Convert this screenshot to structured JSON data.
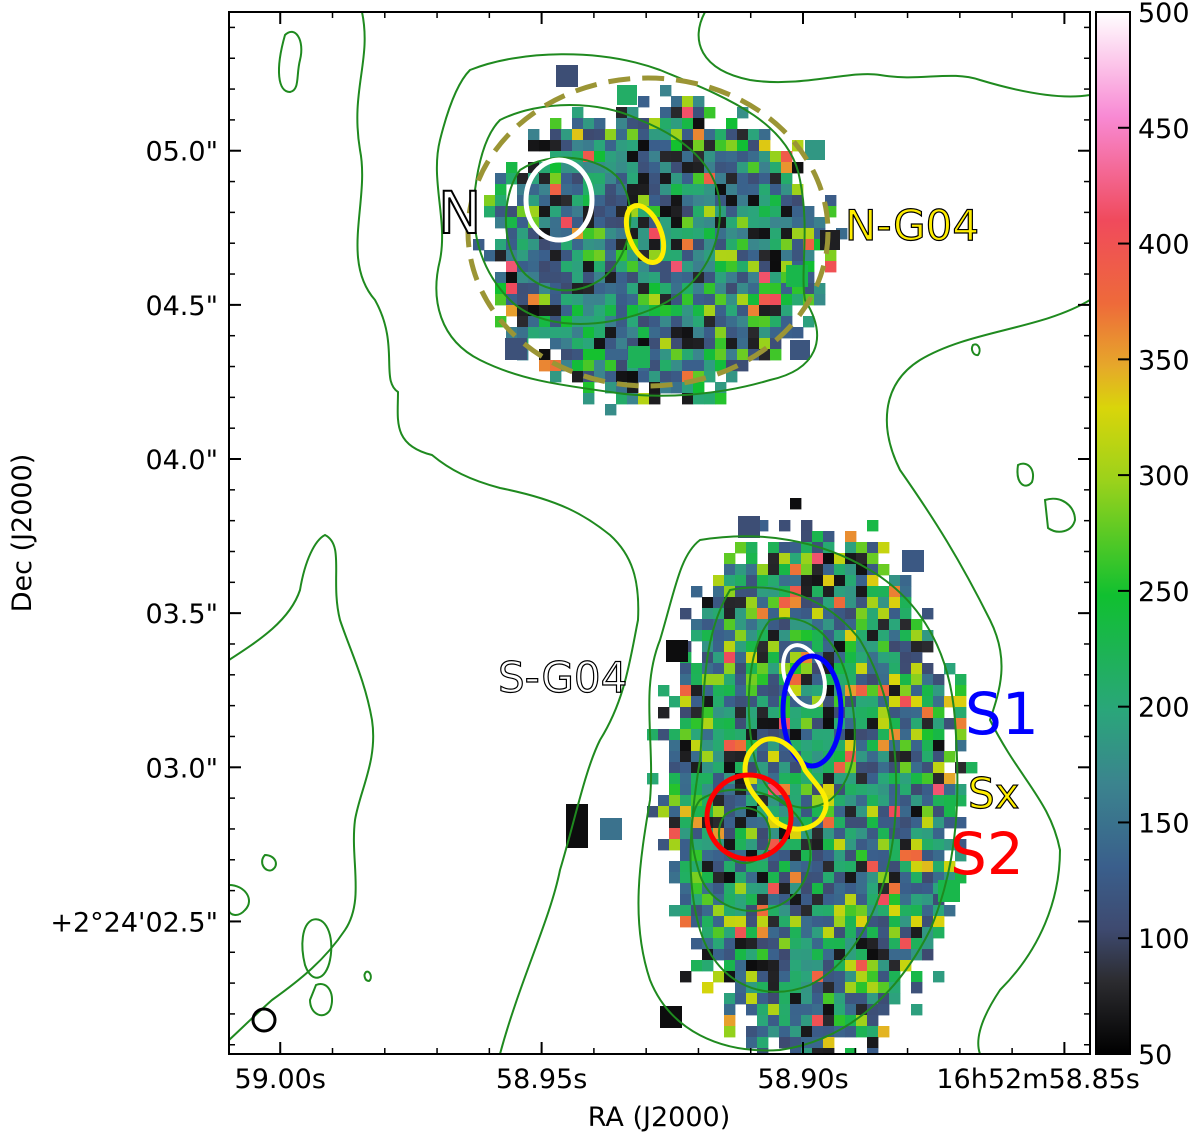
{
  "chart_data": {
    "type": "heatmap",
    "xlabel": "RA (J2000)",
    "ylabel": "Dec (J2000)",
    "x_ticks": [
      {
        "value": 59.0,
        "label": "59.00s"
      },
      {
        "value": 58.95,
        "label": "58.95s"
      },
      {
        "value": 58.9,
        "label": "58.90s"
      },
      {
        "value": 58.85,
        "label": "16h52m58.85s"
      }
    ],
    "y_ticks": [
      {
        "value": 5.0,
        "label": "05.0\""
      },
      {
        "value": 4.5,
        "label": "04.5\""
      },
      {
        "value": 4.0,
        "label": "04.0\""
      },
      {
        "value": 3.5,
        "label": "03.5\""
      },
      {
        "value": 3.0,
        "label": "03.0\""
      },
      {
        "value": 2.5,
        "label": "+2°24'02.5\""
      }
    ],
    "xlim": [
      59.0098,
      58.8451
    ],
    "ylim": [
      2.07,
      5.45
    ],
    "colorbar": {
      "range": [
        50,
        500
      ],
      "ticks": [
        {
          "value": 500,
          "label": "500"
        },
        {
          "value": 450,
          "label": "450"
        },
        {
          "value": 400,
          "label": "400"
        },
        {
          "value": 350,
          "label": "350"
        },
        {
          "value": 300,
          "label": "300"
        },
        {
          "value": 250,
          "label": "250"
        },
        {
          "value": 200,
          "label": "200"
        },
        {
          "value": 150,
          "label": "150"
        },
        {
          "value": 100,
          "label": "100"
        },
        {
          "value": 50,
          "label": "50"
        }
      ]
    },
    "regions": [
      {
        "label": "N",
        "ra": 58.9398,
        "dec": 4.884,
        "ra_width": 0.0108,
        "dec_height": 0.34,
        "shape": "ellipse",
        "color": "#ffffff"
      },
      {
        "label": "N-G04",
        "ra": 58.9219,
        "dec": 4.745,
        "ra_width": 0.0052,
        "dec_height": 0.19,
        "angle": -22,
        "shape": "ellipse",
        "color": "#ffee00"
      },
      {
        "label": "N-G04 envelope",
        "ra": 58.9319,
        "dec": 4.77,
        "ra_width": 0.0591,
        "dec_height": 0.998,
        "shape": "dashed-ellipse",
        "color": "#9b9535"
      },
      {
        "label": "S-G04",
        "ra": 58.8873,
        "dec": 3.311,
        "ra_width": 0.0063,
        "dec_height": 0.207,
        "angle": -20,
        "shape": "ellipse",
        "color": "#ffffff"
      },
      {
        "label": "S1",
        "ra": 58.8848,
        "dec": 3.198,
        "ra_width": 0.0095,
        "dec_height": 0.358,
        "shape": "ellipse",
        "color": "#0000ff"
      },
      {
        "label": "Sx",
        "ra": 58.891,
        "dec": 3.01,
        "shape": "freeform",
        "color": "#ffee00"
      },
      {
        "label": "S2",
        "ra": 58.8971,
        "dec": 2.87,
        "ra_width": 0.0132,
        "dec_height": 0.278,
        "shape": "ellipse",
        "color": "#ff0000"
      }
    ],
    "beam": {
      "ra": 59.0042,
      "dec": 2.2
    }
  },
  "colors": {
    "contour": "#1f8a1f",
    "n_label_fill": "#ffffff",
    "n_g04_text": "#ffee00",
    "s_g04_text": "#ffffff",
    "s1_text": "#0000ff",
    "sx_text": "#ffee00",
    "s2_text": "#ff0000"
  }
}
